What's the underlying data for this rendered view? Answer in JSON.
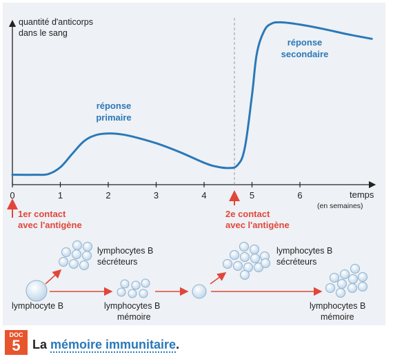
{
  "chart_data": {
    "type": "line",
    "ylabel_line1": "quantité d'anticorps",
    "ylabel_line2": "dans le sang",
    "xlabel": "temps",
    "xlabel_unit": "(en semaines)",
    "xlim": [
      0,
      7.5
    ],
    "x_ticks": [
      "0",
      "1",
      "2",
      "3",
      "4",
      "5",
      "6"
    ],
    "series": [
      {
        "x": [
          0,
          0.5,
          0.75,
          1.0,
          1.25,
          1.5,
          1.75,
          2.0,
          2.25,
          2.5,
          3.0,
          3.5,
          4.0,
          4.25,
          4.5,
          4.7,
          4.85,
          5.0,
          5.1,
          5.25,
          5.4,
          5.6,
          6.0,
          6.5,
          7.0,
          7.5
        ],
        "y": [
          4,
          4,
          5,
          14,
          32,
          49,
          57,
          59,
          58,
          55,
          46,
          34,
          20,
          15,
          13,
          17,
          40,
          110,
          165,
          195,
          205,
          207,
          204,
          198,
          191,
          185
        ]
      }
    ],
    "annotations": {
      "primary_line1": "réponse",
      "primary_line2": "primaire",
      "secondary_line1": "réponse",
      "secondary_line2": "secondaire",
      "contact1_line1": "1er contact",
      "contact1_line2": "avec l'antigène",
      "contact2_line1": "2e contact",
      "contact2_line2": "avec l'antigène"
    }
  },
  "cells": {
    "b_lymphocyte": "lymphocyte B",
    "secreting_1a": "lymphocytes B",
    "secreting_1b": "sécréteurs",
    "memory_1a": "lymphocytes B",
    "memory_1b": "mémoire",
    "secreting_2a": "lymphocytes B",
    "secreting_2b": "sécréteurs",
    "memory_2a": "lymphocytes B",
    "memory_2b": "mémoire"
  },
  "footer": {
    "doc_label": "DOC",
    "doc_number": "5",
    "caption_prefix": "La ",
    "caption_emphasis": "mémoire immunitaire",
    "caption_suffix": "."
  },
  "colors": {
    "curve": "#2a78b8",
    "annotation_blue": "#2a78b8",
    "contact_red": "#e0473a",
    "cell_fill": "#d6e6f2",
    "cell_stroke": "#8fb1cf"
  }
}
